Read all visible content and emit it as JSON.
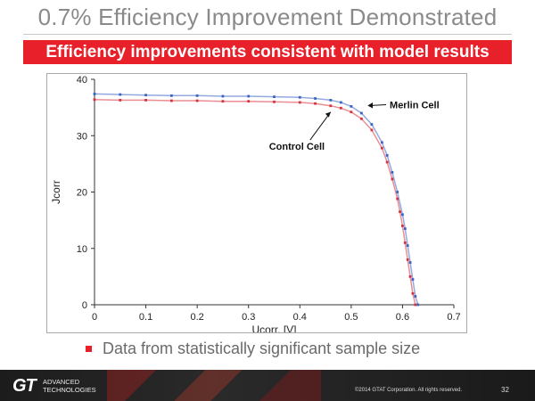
{
  "slide": {
    "title": "0.7% Efficiency Improvement Demonstrated",
    "banner": "Efficiency improvements consistent with model results",
    "bullet": "Data from statistically significant sample size",
    "footer": {
      "logo": "GT",
      "logo_line1": "ADVANCED",
      "logo_line2": "TECHNOLOGIES",
      "copyright": "©2014 GTAT Corporation.  All rights reserved.",
      "page": "32"
    },
    "colors": {
      "accent": "#e8202a",
      "merlin": "#3a63c4",
      "control": "#d8323c"
    }
  },
  "chart_data": {
    "type": "line",
    "xlabel": "Ucorr. [V]",
    "ylabel": "Jcorr",
    "xlim": [
      0,
      0.7
    ],
    "ylim": [
      0,
      40
    ],
    "x_ticks": [
      "0",
      "0.1",
      "0.2",
      "0.3",
      "0.4",
      "0.5",
      "0.6",
      "0.7"
    ],
    "y_ticks": [
      "0",
      "10",
      "20",
      "30",
      "40"
    ],
    "grid": false,
    "annotations": [
      {
        "text": "Merlin Cell",
        "series": "Merlin Cell"
      },
      {
        "text": "Control Cell",
        "series": "Control Cell"
      }
    ],
    "series": [
      {
        "name": "Merlin Cell",
        "color": "#3a63c4",
        "x": [
          0,
          0.05,
          0.1,
          0.15,
          0.2,
          0.25,
          0.3,
          0.35,
          0.4,
          0.43,
          0.46,
          0.48,
          0.5,
          0.52,
          0.54,
          0.56,
          0.57,
          0.58,
          0.59,
          0.6,
          0.605,
          0.61,
          0.615,
          0.62,
          0.625,
          0.63
        ],
        "y": [
          37.4,
          37.3,
          37.2,
          37.1,
          37.1,
          37.0,
          37.0,
          36.9,
          36.8,
          36.6,
          36.3,
          35.9,
          35.2,
          34.0,
          32.0,
          28.8,
          26.5,
          23.5,
          20.0,
          16.0,
          13.5,
          10.5,
          7.5,
          4.5,
          1.5,
          0
        ]
      },
      {
        "name": "Control Cell",
        "color": "#d8323c",
        "x": [
          0,
          0.05,
          0.1,
          0.15,
          0.2,
          0.25,
          0.3,
          0.35,
          0.4,
          0.43,
          0.46,
          0.48,
          0.5,
          0.52,
          0.54,
          0.56,
          0.57,
          0.58,
          0.59,
          0.595,
          0.6,
          0.605,
          0.61,
          0.615,
          0.62,
          0.625
        ],
        "y": [
          36.4,
          36.3,
          36.3,
          36.2,
          36.2,
          36.1,
          36.1,
          36.0,
          35.9,
          35.7,
          35.3,
          34.9,
          34.2,
          33.0,
          31.0,
          27.8,
          25.3,
          22.3,
          18.8,
          16.5,
          14.0,
          11.0,
          8.0,
          5.0,
          2.0,
          0
        ]
      }
    ]
  }
}
